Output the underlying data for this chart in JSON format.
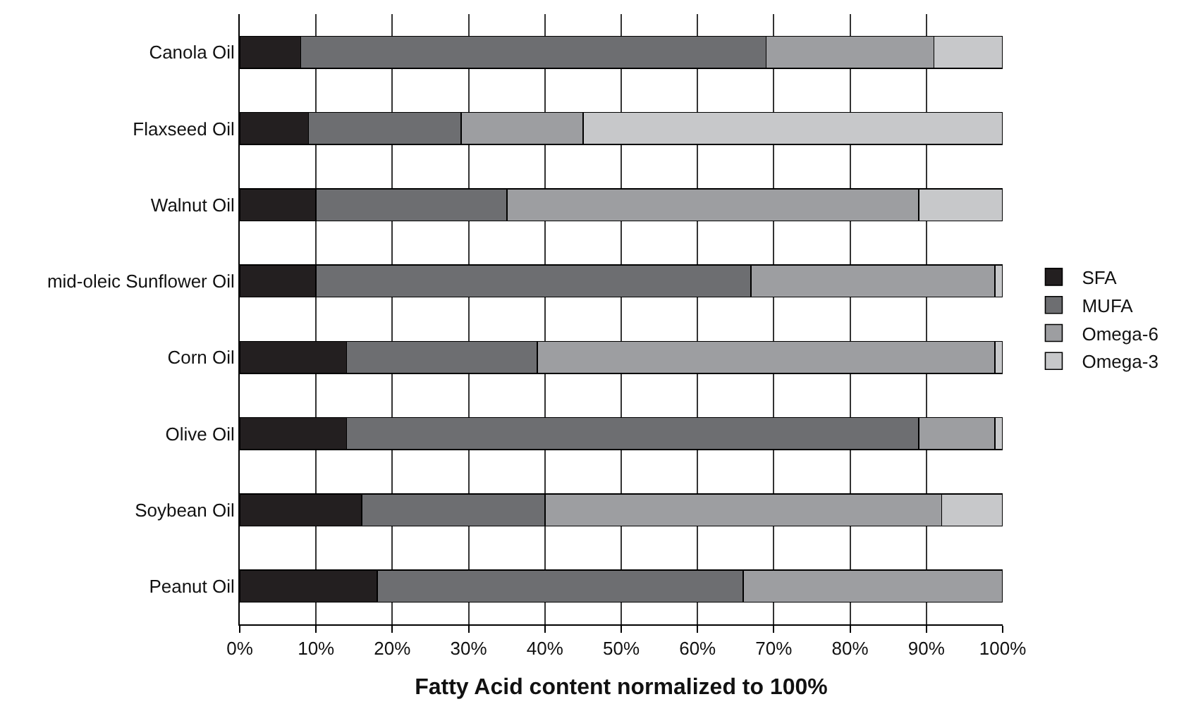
{
  "chart_data": {
    "type": "bar",
    "orientation": "horizontal",
    "stacked": true,
    "xlabel": "Fatty Acid content normalized to 100%",
    "categories": [
      "Canola Oil",
      "Flaxseed Oil",
      "Walnut Oil",
      "mid-oleic Sunflower Oil",
      "Corn Oil",
      "Olive Oil",
      "Soybean Oil",
      "Peanut Oil"
    ],
    "series": [
      {
        "name": "SFA",
        "color": "#231f20",
        "values": [
          8,
          9,
          10,
          10,
          14,
          14,
          16,
          18
        ]
      },
      {
        "name": "MUFA",
        "color": "#6d6e71",
        "values": [
          61,
          20,
          25,
          57,
          25,
          75,
          24,
          48
        ]
      },
      {
        "name": "Omega-6",
        "color": "#9d9ea1",
        "values": [
          22,
          16,
          54,
          32,
          60,
          10,
          52,
          34
        ]
      },
      {
        "name": "Omega-3",
        "color": "#c7c8ca",
        "values": [
          9,
          55,
          11,
          1,
          1,
          1,
          8,
          null
        ]
      }
    ],
    "xlim": [
      0,
      100
    ],
    "xticks": [
      {
        "value": 0,
        "label": "0%"
      },
      {
        "value": 10,
        "label": "10%"
      },
      {
        "value": 20,
        "label": "20%"
      },
      {
        "value": 30,
        "label": "30%"
      },
      {
        "value": 40,
        "label": "40%"
      },
      {
        "value": 50,
        "label": "50%"
      },
      {
        "value": 60,
        "label": "60%"
      },
      {
        "value": 70,
        "label": "70%"
      },
      {
        "value": 80,
        "label": "80%"
      },
      {
        "value": 90,
        "label": "90%"
      },
      {
        "value": 100,
        "label": "100%"
      }
    ],
    "grid": "x",
    "legend": "right"
  }
}
